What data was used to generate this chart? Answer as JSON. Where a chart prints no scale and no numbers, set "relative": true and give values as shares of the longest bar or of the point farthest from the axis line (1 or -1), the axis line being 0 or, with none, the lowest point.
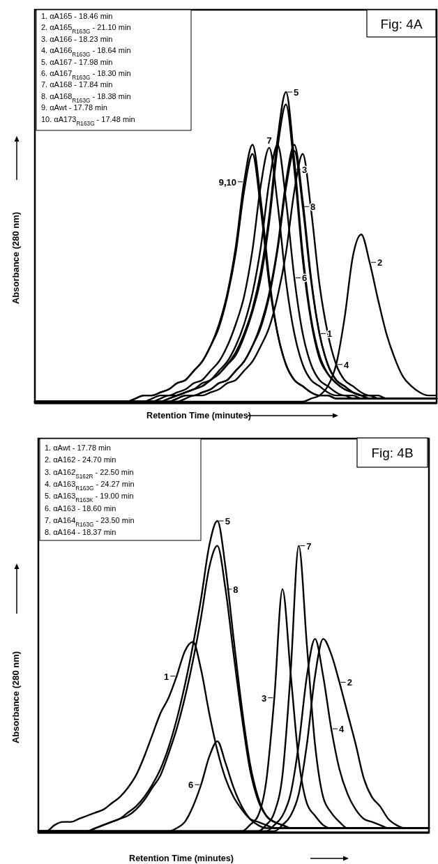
{
  "chart_data": [
    {
      "type": "line",
      "title": "Fig: 4A",
      "xlabel": "Retention Time (minutes)",
      "ylabel": "Absorbance (280 nm)",
      "relative": true,
      "legend": "right",
      "annotations": [
        "1. αA165 - 18.46 min",
        "2. αA165$_{R163G}$ - 21.10 min",
        "3. αA166 - 18.23 min",
        "4. αA166$_{R163G}$ - 18.64 min",
        "5. αA167 - 17.98 min",
        "6. αA167$_{R163G}$ - 18.30 min",
        "7. αA168 - 17.84 min",
        "8. αA168$_{R163G}$ - 18.38 min",
        "9. αAwt - 17.78 min",
        "10. αA173$_{R163G}$ - 17.48 min"
      ],
      "categories": [
        null,
        null,
        null,
        null,
        null,
        null,
        null,
        null,
        null,
        null,
        null,
        null,
        null,
        null,
        null,
        null,
        null,
        null,
        null,
        null,
        null,
        null,
        null,
        null,
        null,
        null,
        null,
        null,
        null,
        null,
        null,
        null,
        null,
        null,
        null,
        null,
        null,
        null,
        null,
        null,
        null,
        null,
        null,
        null,
        null,
        null,
        null,
        null,
        null
      ],
      "series": [
        {
          "name": "1",
          "color": "#000000",
          "values": [
            0,
            0,
            0,
            0,
            0,
            0,
            0,
            0,
            0,
            0,
            0,
            0,
            0,
            0,
            0,
            0,
            0,
            0.01,
            0.02,
            0.02,
            0.03,
            0.04,
            0.06,
            0.07,
            0.1,
            0.13,
            0.18,
            0.25,
            0.35,
            0.5,
            0.71,
            0.83,
            0.65,
            0.4,
            0.22,
            0.12,
            0.07,
            0.05,
            0.03,
            0.02,
            0.02,
            0.01,
            0.01,
            0.01,
            0.01,
            0.01,
            0.01,
            0.01,
            0.01
          ]
        },
        {
          "name": "2",
          "color": "#000000",
          "values": [
            0,
            0,
            0,
            0,
            0,
            0,
            0,
            0,
            0,
            0,
            0,
            0,
            0,
            0,
            0,
            0,
            0,
            0,
            0,
            0,
            0,
            0,
            0,
            0,
            0,
            0,
            0,
            0,
            0,
            0,
            0,
            0,
            0,
            0.01,
            0.02,
            0.05,
            0.12,
            0.27,
            0.47,
            0.54,
            0.45,
            0.33,
            0.22,
            0.14,
            0.08,
            0.05,
            0.03,
            0.02,
            0.02
          ]
        },
        {
          "name": "3",
          "color": "#000000",
          "values": [
            0,
            0,
            0,
            0,
            0,
            0,
            0,
            0,
            0,
            0,
            0,
            0,
            0,
            0,
            0,
            0,
            0.01,
            0.02,
            0.03,
            0.04,
            0.05,
            0.07,
            0.09,
            0.12,
            0.15,
            0.21,
            0.29,
            0.4,
            0.58,
            0.82,
            0.96,
            0.75,
            0.46,
            0.26,
            0.14,
            0.09,
            0.06,
            0.04,
            0.03,
            0.02,
            0.01,
            0.01,
            0.01,
            0.01,
            0.01,
            0.01,
            0.01,
            0.01,
            0.01
          ]
        },
        {
          "name": "4",
          "color": "#000000",
          "values": [
            0,
            0,
            0,
            0,
            0,
            0,
            0,
            0,
            0,
            0,
            0,
            0,
            0,
            0,
            0,
            0,
            0,
            0,
            0.01,
            0.02,
            0.02,
            0.03,
            0.04,
            0.06,
            0.07,
            0.1,
            0.13,
            0.18,
            0.24,
            0.34,
            0.48,
            0.68,
            0.8,
            0.62,
            0.38,
            0.22,
            0.12,
            0.07,
            0.05,
            0.03,
            0.02,
            0.02,
            0.01,
            0.01,
            0.01,
            0.01,
            0.01,
            0.01,
            0.01
          ]
        },
        {
          "name": "5",
          "color": "#000000",
          "values": [
            0,
            0,
            0,
            0,
            0,
            0,
            0,
            0,
            0,
            0,
            0,
            0,
            0,
            0,
            0,
            0,
            0.01,
            0.02,
            0.03,
            0.04,
            0.05,
            0.07,
            0.09,
            0.12,
            0.16,
            0.22,
            0.3,
            0.42,
            0.6,
            0.85,
            1,
            0.78,
            0.48,
            0.27,
            0.15,
            0.09,
            0.06,
            0.04,
            0.03,
            0.02,
            0.01,
            0.01,
            0.01,
            0.01,
            0.01,
            0.01,
            0.01,
            0.01,
            0.01
          ]
        },
        {
          "name": "6",
          "color": "#000000",
          "values": [
            0,
            0,
            0,
            0,
            0,
            0,
            0,
            0,
            0,
            0,
            0,
            0,
            0,
            0,
            0,
            0.01,
            0.02,
            0.02,
            0.03,
            0.04,
            0.06,
            0.07,
            0.1,
            0.13,
            0.18,
            0.25,
            0.35,
            0.5,
            0.71,
            0.83,
            0.65,
            0.4,
            0.22,
            0.12,
            0.07,
            0.05,
            0.03,
            0.02,
            0.02,
            0.01,
            0.01,
            0.01,
            0.01,
            0.01,
            0.01,
            0.01,
            0.01,
            0.01,
            0.01
          ]
        },
        {
          "name": "7",
          "color": "#000000",
          "values": [
            0,
            0,
            0,
            0,
            0,
            0,
            0,
            0,
            0,
            0,
            0,
            0,
            0,
            0,
            0.01,
            0.02,
            0.02,
            0.03,
            0.04,
            0.06,
            0.07,
            0.1,
            0.13,
            0.18,
            0.25,
            0.34,
            0.49,
            0.7,
            0.82,
            0.64,
            0.39,
            0.22,
            0.12,
            0.07,
            0.05,
            0.03,
            0.02,
            0.02,
            0.01,
            0.01,
            0.01,
            0.01,
            0.01,
            0.01,
            0.01,
            0.01,
            0.01,
            0.01,
            0.01
          ]
        },
        {
          "name": "8",
          "color": "#000000",
          "values": [
            0,
            0,
            0,
            0,
            0,
            0,
            0,
            0,
            0,
            0,
            0,
            0,
            0,
            0,
            0,
            0,
            0,
            0.01,
            0.02,
            0.02,
            0.03,
            0.04,
            0.06,
            0.07,
            0.1,
            0.13,
            0.18,
            0.24,
            0.34,
            0.49,
            0.69,
            0.81,
            0.63,
            0.39,
            0.22,
            0.12,
            0.07,
            0.05,
            0.03,
            0.02,
            0.02,
            0.01,
            0.01,
            0.01,
            0.01,
            0.01,
            0.01,
            0.01,
            0.01
          ]
        },
        {
          "name": "9,10",
          "color": "#000000",
          "values": [
            0,
            0,
            0,
            0,
            0,
            0,
            0,
            0,
            0,
            0,
            0,
            0,
            0.01,
            0.02,
            0.02,
            0.03,
            0.04,
            0.06,
            0.07,
            0.1,
            0.13,
            0.18,
            0.25,
            0.35,
            0.5,
            0.71,
            0.83,
            0.65,
            0.4,
            0.22,
            0.12,
            0.07,
            0.05,
            0.03,
            0.02,
            0.02,
            0.01,
            0.01,
            0.01,
            0.01,
            0.01,
            0.01,
            0.01,
            0.01,
            0.01,
            0.01,
            0.01,
            0.01,
            0.01
          ]
        },
        {
          "color": "#000000",
          "values": [
            0,
            0,
            0,
            0,
            0,
            0,
            0,
            0,
            0,
            0,
            0,
            0,
            0.01,
            0.02,
            0.02,
            0.03,
            0.04,
            0.06,
            0.07,
            0.1,
            0.13,
            0.18,
            0.24,
            0.34,
            0.48,
            0.68,
            0.8,
            0.62,
            0.38,
            0.22,
            0.12,
            0.07,
            0.05,
            0.03,
            0.02,
            0.02,
            0.01,
            0.01,
            0.01,
            0.01,
            0.01,
            0.01,
            0.01,
            0.01,
            0.01,
            0.01,
            0.01,
            0.01,
            0.01
          ]
        }
      ]
    },
    {
      "type": "line",
      "title": "Fig: 4B",
      "xlabel": "Retention Time (minutes)",
      "ylabel": "Absorbance (280 nm)",
      "relative": true,
      "legend": "right",
      "annotations": [
        "1. αAwt - 17.78 min",
        "2. αA162 - 24.70 min",
        "3. αA162$_{S162R}$ - 22.50 min",
        "4. αA163$_{R163G}$ - 24.27 min",
        "5. αA163$_{R163K}$ - 19.00 min",
        "6. αA163 - 18.60 min",
        "7. αA164$_{R163G}$ - 23.50 min",
        "8. αA164 - 18.37 min"
      ],
      "categories": [
        null,
        null,
        null,
        null,
        null,
        null,
        null,
        null,
        null,
        null,
        null,
        null,
        null,
        null,
        null,
        null,
        null,
        null,
        null,
        null,
        null,
        null,
        null,
        null,
        null,
        null,
        null,
        null,
        null,
        null,
        null,
        null,
        null,
        null,
        null,
        null,
        null,
        null,
        null,
        null,
        null,
        null,
        null,
        null,
        null,
        null,
        null,
        null,
        null
      ],
      "series": [
        {
          "name": "1",
          "color": "#000000",
          "values": [
            0,
            0,
            0.02,
            0.03,
            0.03,
            0.04,
            0.05,
            0.06,
            0.07,
            0.09,
            0.11,
            0.14,
            0.18,
            0.24,
            0.31,
            0.38,
            0.43,
            0.5,
            0.58,
            0.61,
            0.52,
            0.38,
            0.26,
            0.17,
            0.11,
            0.07,
            0.04,
            0.03,
            0.02,
            0.01,
            0.01,
            0.01,
            0.01,
            0.01,
            0.01,
            0.01,
            0.01,
            0.01,
            0.01,
            0.01,
            0.01,
            0.01,
            0.01,
            0.01,
            0.01,
            0.01,
            0.01,
            0.01,
            0.01
          ]
        },
        {
          "name": "2",
          "color": "#000000",
          "values": [
            0,
            0,
            0,
            0,
            0,
            0,
            0,
            0,
            0,
            0,
            0,
            0,
            0,
            0,
            0,
            0,
            0,
            0,
            0,
            0,
            0,
            0,
            0,
            0,
            0,
            0,
            0,
            0,
            0,
            0,
            0.02,
            0.05,
            0.12,
            0.28,
            0.5,
            0.62,
            0.57,
            0.48,
            0.38,
            0.28,
            0.17,
            0.11,
            0.08,
            0.04,
            0.02,
            0.01,
            0.01,
            0.01,
            0.01
          ]
        },
        {
          "name": "3",
          "color": "#000000",
          "values": [
            0,
            0,
            0,
            0,
            0,
            0,
            0,
            0,
            0,
            0,
            0,
            0,
            0,
            0,
            0,
            0,
            0,
            0,
            0,
            0,
            0,
            0,
            0,
            0,
            0,
            0,
            0.02,
            0.05,
            0.16,
            0.43,
            0.78,
            0.51,
            0.23,
            0.09,
            0.05,
            0.02,
            0.01,
            0.01,
            0.01,
            0.01,
            0.01,
            0.01,
            0.01,
            0.01,
            0.01,
            0.01,
            0.01,
            0.01,
            0.01
          ]
        },
        {
          "name": "4",
          "color": "#000000",
          "values": [
            0,
            0,
            0,
            0,
            0,
            0,
            0,
            0,
            0,
            0,
            0,
            0,
            0,
            0,
            0,
            0,
            0,
            0,
            0,
            0,
            0,
            0,
            0,
            0,
            0,
            0,
            0,
            0,
            0,
            0.02,
            0.05,
            0.12,
            0.28,
            0.5,
            0.62,
            0.5,
            0.33,
            0.2,
            0.12,
            0.07,
            0.04,
            0.03,
            0.02,
            0.01,
            0.01,
            0.01,
            0.01,
            0.01,
            0.01
          ]
        },
        {
          "name": "5",
          "color": "#000000",
          "values": [
            0,
            0,
            0,
            0,
            0,
            0,
            0,
            0.01,
            0.02,
            0.03,
            0.04,
            0.06,
            0.08,
            0.11,
            0.15,
            0.2,
            0.27,
            0.36,
            0.47,
            0.6,
            0.75,
            0.92,
            1,
            0.85,
            0.62,
            0.4,
            0.22,
            0.11,
            0.05,
            0.03,
            0.02,
            0.01,
            0.01,
            0.01,
            0.01,
            0.01,
            0.01,
            0.01,
            0.01,
            0.01,
            0.01,
            0.01,
            0.01,
            0.01,
            0.01,
            0.01,
            0.01,
            0.01,
            0.01
          ]
        },
        {
          "name": "6",
          "color": "#000000",
          "values": [
            0,
            0,
            0,
            0,
            0,
            0,
            0,
            0,
            0,
            0,
            0,
            0,
            0,
            0,
            0,
            0,
            0,
            0.01,
            0.03,
            0.08,
            0.15,
            0.24,
            0.29,
            0.22,
            0.14,
            0.08,
            0.04,
            0.02,
            0.01,
            0.01,
            0.01,
            0.01,
            0.01,
            0.01,
            0.01,
            0.01,
            0.01,
            0.01,
            0.01,
            0.01,
            0.01,
            0.01,
            0.01,
            0.01,
            0.01,
            0.01,
            0.01,
            0.01,
            0.01
          ]
        },
        {
          "name": "7",
          "color": "#000000",
          "values": [
            0,
            0,
            0,
            0,
            0,
            0,
            0,
            0,
            0,
            0,
            0,
            0,
            0,
            0,
            0,
            0,
            0,
            0,
            0,
            0,
            0,
            0,
            0,
            0,
            0,
            0,
            0,
            0,
            0.02,
            0.06,
            0.18,
            0.51,
            0.92,
            0.6,
            0.28,
            0.11,
            0.06,
            0.03,
            0.01,
            0.01,
            0.01,
            0.01,
            0.01,
            0.01,
            0.01,
            0.01,
            0.01,
            0.01,
            0.01
          ]
        },
        {
          "name": "8",
          "color": "#000000",
          "values": [
            0,
            0,
            0,
            0,
            0,
            0,
            0,
            0.01,
            0.02,
            0.03,
            0.04,
            0.05,
            0.07,
            0.1,
            0.14,
            0.18,
            0.25,
            0.33,
            0.43,
            0.55,
            0.69,
            0.85,
            0.92,
            0.78,
            0.57,
            0.37,
            0.2,
            0.1,
            0.05,
            0.03,
            0.02,
            0.01,
            0.01,
            0.01,
            0.01,
            0.01,
            0.01,
            0.01,
            0.01,
            0.01,
            0.01,
            0.01,
            0.01,
            0.01,
            0.01,
            0.01,
            0.01,
            0.01,
            0.01
          ]
        }
      ]
    }
  ]
}
